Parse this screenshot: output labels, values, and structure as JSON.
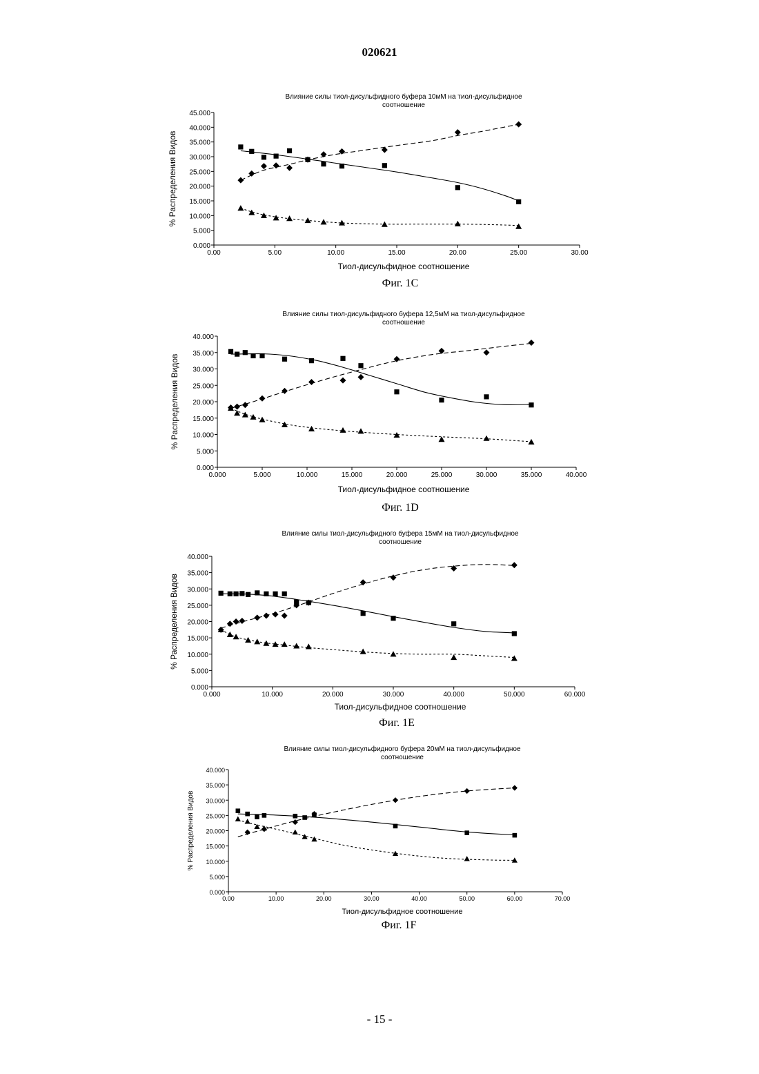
{
  "page": {
    "header": "020621",
    "footer": "- 15 -"
  },
  "chart_data": [
    {
      "type": "scatter",
      "title": [
        "Влияние силы тиол-дисульфидного буфера 10мМ на тиол-дисульфидное",
        "соотношение"
      ],
      "xlabel": "Тиол-дисульфидное соотношение",
      "ylabel": "% Распределения Видов",
      "caption": "Фиг. 1C",
      "xlim": [
        0,
        30
      ],
      "ylim": [
        0,
        45
      ],
      "xticks": [
        0,
        5,
        10,
        15,
        20,
        25,
        30
      ],
      "xtick_labels": [
        "0.00",
        "5.00",
        "10.00",
        "15.00",
        "20.00",
        "25.00",
        "30.00"
      ],
      "yticks": [
        0,
        5,
        10,
        15,
        20,
        25,
        30,
        35,
        40,
        45
      ],
      "ytick_labels": [
        "0.000",
        "5.000",
        "10.000",
        "15.000",
        "20.000",
        "25.000",
        "30.000",
        "35.000",
        "40.000",
        "45.000"
      ],
      "grid": false,
      "legend": "none",
      "series": [
        {
          "marker": "diamond",
          "line": "dashed",
          "x": [
            2.2,
            3.1,
            4.1,
            5.1,
            6.2,
            7.7,
            9.0,
            10.5,
            14.0,
            20.0,
            25.0
          ],
          "y": [
            22.0,
            24.3,
            26.8,
            27.0,
            26.2,
            29.0,
            30.8,
            31.8,
            32.3,
            38.3,
            41.0
          ],
          "trend": [
            [
              2.2,
              22.0
            ],
            [
              4.0,
              25.3
            ],
            [
              6.0,
              27.2
            ],
            [
              8.0,
              29.2
            ],
            [
              10.0,
              30.8
            ],
            [
              12.0,
              32.0
            ],
            [
              15.0,
              33.8
            ],
            [
              18.0,
              35.5
            ],
            [
              20.0,
              37.2
            ],
            [
              22.0,
              38.6
            ],
            [
              25.0,
              41.0
            ]
          ]
        },
        {
          "marker": "square",
          "line": "solid",
          "x": [
            2.2,
            3.1,
            4.1,
            5.1,
            6.2,
            7.7,
            9.0,
            10.5,
            14.0,
            20.0,
            25.0
          ],
          "y": [
            33.3,
            31.8,
            29.8,
            30.2,
            32.0,
            29.0,
            27.5,
            26.8,
            27.0,
            19.5,
            14.7
          ],
          "trend": [
            [
              2.2,
              32.0
            ],
            [
              5.0,
              30.7
            ],
            [
              8.0,
              29.0
            ],
            [
              10.0,
              27.8
            ],
            [
              12.0,
              26.6
            ],
            [
              15.0,
              24.8
            ],
            [
              18.0,
              22.7
            ],
            [
              20.0,
              21.2
            ],
            [
              22.0,
              19.2
            ],
            [
              24.0,
              16.6
            ],
            [
              25.0,
              15.0
            ]
          ]
        },
        {
          "marker": "triangle",
          "line": "dotted",
          "x": [
            2.2,
            3.1,
            4.1,
            5.1,
            6.2,
            7.7,
            9.0,
            10.5,
            14.0,
            20.0,
            25.0
          ],
          "y": [
            12.5,
            11.0,
            10.0,
            9.2,
            9.0,
            8.3,
            7.8,
            7.5,
            7.0,
            7.2,
            6.3
          ],
          "trend": [
            [
              2.2,
              12.5
            ],
            [
              3.5,
              10.8
            ],
            [
              5.0,
              9.6
            ],
            [
              7.0,
              8.6
            ],
            [
              9.0,
              7.9
            ],
            [
              11.0,
              7.4
            ],
            [
              14.0,
              7.1
            ],
            [
              17.0,
              7.1
            ],
            [
              20.0,
              7.1
            ],
            [
              23.0,
              6.9
            ],
            [
              25.0,
              6.6
            ]
          ]
        }
      ]
    },
    {
      "type": "scatter",
      "title": [
        "Влияние силы тиол-дисульфидного буфера 12,5мМ на тиол-дисульфидное",
        "соотношение"
      ],
      "xlabel": "Тиол-дисульфидное соотношение",
      "ylabel": "% Распределения Видов",
      "caption": "Фиг. 1D",
      "xlim": [
        0,
        40
      ],
      "ylim": [
        0,
        40
      ],
      "xticks": [
        0,
        5,
        10,
        15,
        20,
        25,
        30,
        35,
        40
      ],
      "xtick_labels": [
        "0.000",
        "5.000",
        "10.000",
        "15.000",
        "20.000",
        "25.000",
        "30.000",
        "35.000",
        "40.000"
      ],
      "yticks": [
        0,
        5,
        10,
        15,
        20,
        25,
        30,
        35,
        40
      ],
      "ytick_labels": [
        "0.000",
        "5.000",
        "10.000",
        "15.000",
        "20.000",
        "25.000",
        "30.000",
        "35.000",
        "40.000"
      ],
      "grid": false,
      "legend": "none",
      "series": [
        {
          "marker": "diamond",
          "line": "dashed",
          "x": [
            1.5,
            2.2,
            3.1,
            5.0,
            7.5,
            10.5,
            14.0,
            16.0,
            20.0,
            25.0,
            30.0,
            35.0
          ],
          "y": [
            18.2,
            18.5,
            19.0,
            21.0,
            23.3,
            26.0,
            26.5,
            27.5,
            33.0,
            35.5,
            35.0,
            38.0
          ],
          "trend": [
            [
              1.5,
              18.0
            ],
            [
              4.0,
              20.0
            ],
            [
              8.0,
              23.5
            ],
            [
              12.0,
              26.8
            ],
            [
              16.0,
              29.8
            ],
            [
              20.0,
              32.5
            ],
            [
              24.0,
              34.4
            ],
            [
              28.0,
              35.6
            ],
            [
              32.0,
              36.9
            ],
            [
              35.0,
              37.8
            ]
          ]
        },
        {
          "marker": "square",
          "line": "solid",
          "x": [
            1.5,
            2.2,
            3.1,
            4.0,
            5.0,
            7.5,
            10.5,
            14.0,
            16.0,
            20.0,
            25.0,
            30.0,
            35.0
          ],
          "y": [
            35.3,
            34.5,
            35.0,
            34.0,
            34.0,
            33.0,
            32.5,
            33.2,
            31.0,
            23.0,
            20.5,
            21.5,
            19.0
          ],
          "trend": [
            [
              1.5,
              34.5
            ],
            [
              5.0,
              34.6
            ],
            [
              8.0,
              34.0
            ],
            [
              11.0,
              32.6
            ],
            [
              14.0,
              30.5
            ],
            [
              17.0,
              28.0
            ],
            [
              20.0,
              25.5
            ],
            [
              23.0,
              23.0
            ],
            [
              26.0,
              21.2
            ],
            [
              29.0,
              19.8
            ],
            [
              32.0,
              19.1
            ],
            [
              35.0,
              19.2
            ]
          ]
        },
        {
          "marker": "triangle",
          "line": "dotted",
          "x": [
            1.5,
            2.2,
            3.1,
            4.0,
            5.0,
            7.5,
            10.5,
            14.0,
            16.0,
            20.0,
            25.0,
            30.0,
            35.0
          ],
          "y": [
            18.0,
            16.5,
            16.0,
            15.3,
            14.5,
            13.0,
            11.7,
            11.3,
            11.0,
            9.8,
            8.5,
            8.8,
            7.7
          ],
          "trend": [
            [
              1.5,
              18.0
            ],
            [
              3.0,
              16.3
            ],
            [
              5.0,
              14.7
            ],
            [
              8.0,
              13.0
            ],
            [
              11.0,
              11.9
            ],
            [
              15.0,
              10.9
            ],
            [
              20.0,
              10.0
            ],
            [
              25.0,
              9.3
            ],
            [
              30.0,
              8.7
            ],
            [
              35.0,
              7.8
            ]
          ]
        }
      ]
    },
    {
      "type": "scatter",
      "title": [
        "Влияние силы тиол-дисульфидного буфера 15мМ на тиол-дисульфидное",
        "соотношение"
      ],
      "xlabel": "Тиол-дисульфидное соотношение",
      "ylabel": "% Распределения Видов",
      "caption": "Фиг. 1E",
      "xlim": [
        0,
        60
      ],
      "ylim": [
        0,
        40
      ],
      "xticks": [
        0,
        10,
        20,
        30,
        40,
        50,
        60
      ],
      "xtick_labels": [
        "0.000",
        "10.000",
        "20.000",
        "30.000",
        "40.000",
        "50.000",
        "60.000"
      ],
      "yticks": [
        0,
        5,
        10,
        15,
        20,
        25,
        30,
        35,
        40
      ],
      "ytick_labels": [
        "0.000",
        "5.000",
        "10.000",
        "15.000",
        "20.000",
        "25.000",
        "30.000",
        "35.000",
        "40.000"
      ],
      "grid": false,
      "legend": "none",
      "series": [
        {
          "marker": "diamond",
          "line": "dashed",
          "x": [
            1.5,
            3.0,
            4.0,
            5.0,
            7.5,
            9.0,
            10.5,
            12.0,
            14.0,
            16.0,
            25.0,
            30.0,
            40.0,
            50.0
          ],
          "y": [
            17.5,
            19.3,
            20.0,
            20.2,
            21.2,
            21.8,
            22.2,
            21.8,
            25.0,
            25.8,
            32.0,
            33.5,
            36.3,
            37.3
          ],
          "trend": [
            [
              1.5,
              18.0
            ],
            [
              5.0,
              19.9
            ],
            [
              10.0,
              22.4
            ],
            [
              15.0,
              25.4
            ],
            [
              20.0,
              28.6
            ],
            [
              25.0,
              31.5
            ],
            [
              30.0,
              34.0
            ],
            [
              35.0,
              35.9
            ],
            [
              40.0,
              37.0
            ],
            [
              45.0,
              37.5
            ],
            [
              50.0,
              37.2
            ]
          ]
        },
        {
          "marker": "square",
          "line": "solid",
          "x": [
            1.5,
            3.0,
            4.0,
            5.0,
            6.0,
            7.5,
            9.0,
            10.5,
            12.0,
            14.0,
            16.0,
            25.0,
            30.0,
            40.0,
            50.0
          ],
          "y": [
            28.7,
            28.5,
            28.5,
            28.6,
            28.3,
            28.8,
            28.5,
            28.5,
            28.5,
            26.0,
            25.8,
            22.5,
            21.0,
            19.3,
            16.3
          ],
          "trend": [
            [
              1.5,
              28.5
            ],
            [
              6.0,
              28.4
            ],
            [
              10.0,
              27.8
            ],
            [
              15.0,
              26.5
            ],
            [
              20.0,
              25.0
            ],
            [
              25.0,
              23.3
            ],
            [
              30.0,
              21.5
            ],
            [
              35.0,
              19.8
            ],
            [
              40.0,
              18.2
            ],
            [
              45.0,
              17.0
            ],
            [
              50.0,
              16.5
            ]
          ]
        },
        {
          "marker": "triangle",
          "line": "dotted",
          "x": [
            1.5,
            3.0,
            4.0,
            6.0,
            7.5,
            9.0,
            10.5,
            12.0,
            14.0,
            16.0,
            25.0,
            30.0,
            40.0,
            50.0
          ],
          "y": [
            17.5,
            16.0,
            15.3,
            14.3,
            13.8,
            13.3,
            13.0,
            13.0,
            12.5,
            12.3,
            10.8,
            10.0,
            9.0,
            8.7
          ],
          "trend": [
            [
              1.5,
              17.5
            ],
            [
              4.0,
              15.3
            ],
            [
              8.0,
              13.7
            ],
            [
              12.0,
              12.8
            ],
            [
              16.0,
              12.0
            ],
            [
              20.0,
              11.4
            ],
            [
              25.0,
              10.7
            ],
            [
              30.0,
              10.2
            ],
            [
              35.0,
              10.0
            ],
            [
              40.0,
              10.0
            ],
            [
              45.0,
              9.5
            ],
            [
              50.0,
              9.0
            ]
          ]
        }
      ]
    },
    {
      "type": "scatter",
      "title": [
        "Влияние силы тиол-дисульфидного буфера 20мМ на тиол-дисульфидное",
        "соотношение"
      ],
      "xlabel": "Тиол-дисульфидное соотношение",
      "ylabel": "% Распределения Видов",
      "caption": "Фиг. 1F",
      "xlim": [
        0,
        70
      ],
      "ylim": [
        0,
        40
      ],
      "xticks": [
        0,
        10,
        20,
        30,
        40,
        50,
        60,
        70
      ],
      "xtick_labels": [
        "0.00",
        "10.00",
        "20.00",
        "30.00",
        "40.00",
        "50.00",
        "60.00",
        "70.00"
      ],
      "yticks": [
        0,
        5,
        10,
        15,
        20,
        25,
        30,
        35,
        40
      ],
      "ytick_labels": [
        "0.000",
        "5.000",
        "10.000",
        "15.000",
        "20.000",
        "25.000",
        "30.000",
        "35.000",
        "40.000"
      ],
      "grid": false,
      "legend": "none",
      "series": [
        {
          "marker": "diamond",
          "line": "dashed",
          "x": [
            4.0,
            7.5,
            14.0,
            18.0,
            35.0,
            50.0,
            60.0
          ],
          "y": [
            19.5,
            20.5,
            22.8,
            25.5,
            30.0,
            33.0,
            34.0
          ],
          "trend": [
            [
              2.0,
              18.0
            ],
            [
              8.0,
              20.7
            ],
            [
              14.0,
              23.2
            ],
            [
              20.0,
              25.4
            ],
            [
              30.0,
              28.6
            ],
            [
              40.0,
              31.2
            ],
            [
              50.0,
              33.0
            ],
            [
              60.0,
              34.0
            ]
          ]
        },
        {
          "marker": "square",
          "line": "solid",
          "x": [
            2.0,
            4.0,
            6.0,
            7.5,
            14.0,
            16.0,
            18.0,
            35.0,
            50.0,
            60.0
          ],
          "y": [
            26.5,
            25.5,
            24.5,
            25.0,
            24.8,
            24.3,
            25.2,
            21.5,
            19.3,
            18.5
          ],
          "trend": [
            [
              2.0,
              25.5
            ],
            [
              10.0,
              25.1
            ],
            [
              20.0,
              24.2
            ],
            [
              30.0,
              22.8
            ],
            [
              40.0,
              21.2
            ],
            [
              50.0,
              19.6
            ],
            [
              60.0,
              18.6
            ]
          ]
        },
        {
          "marker": "triangle",
          "line": "dotted",
          "x": [
            2.0,
            4.0,
            6.0,
            7.5,
            14.0,
            16.0,
            18.0,
            35.0,
            50.0,
            60.0
          ],
          "y": [
            23.8,
            23.0,
            21.3,
            20.8,
            19.5,
            18.0,
            17.2,
            12.5,
            10.8,
            10.3
          ],
          "trend": [
            [
              2.0,
              23.5
            ],
            [
              6.0,
              21.9
            ],
            [
              10.0,
              20.5
            ],
            [
              14.0,
              19.0
            ],
            [
              18.0,
              17.5
            ],
            [
              25.0,
              15.0
            ],
            [
              35.0,
              12.6
            ],
            [
              45.0,
              11.0
            ],
            [
              55.0,
              10.4
            ],
            [
              60.0,
              10.3
            ]
          ]
        }
      ]
    }
  ]
}
